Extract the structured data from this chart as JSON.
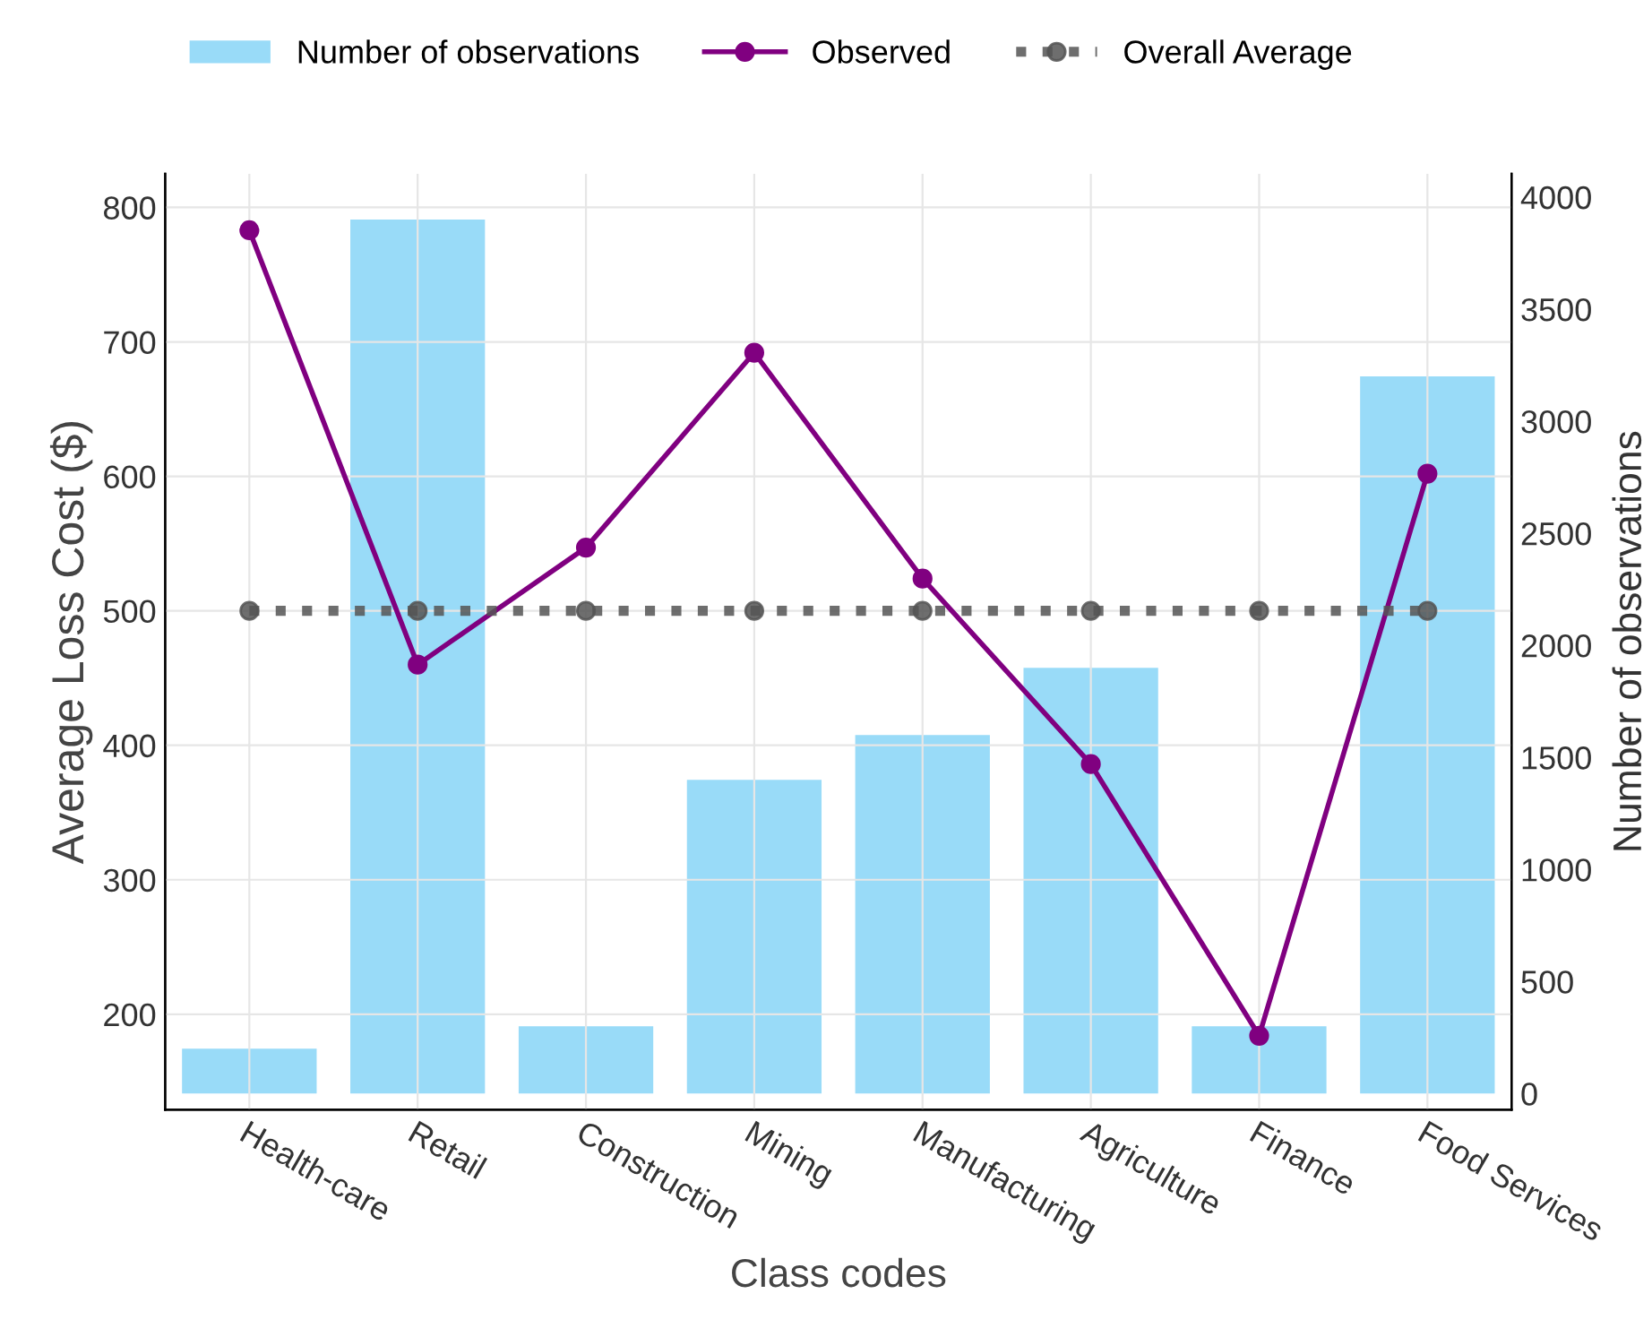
{
  "chart_data": {
    "type": "line",
    "xlabel": "Class codes",
    "ylabel": "Average Loss Cost ($)",
    "y2label": "Number of observations",
    "categories": [
      "Health-care",
      "Retail",
      "Construction",
      "Mining",
      "Manufacturing",
      "Agriculture",
      "Finance",
      "Food Services"
    ],
    "series": [
      {
        "name": "Number of observations",
        "type": "bar",
        "axis": "y2",
        "color": "#99dbf8",
        "values": [
          200,
          3900,
          300,
          1400,
          1600,
          1900,
          300,
          3200
        ]
      },
      {
        "name": "Observed",
        "color": "#800080",
        "marker": "circle",
        "line_style": "solid",
        "values": [
          783,
          460,
          547,
          692,
          524,
          386,
          184,
          602
        ]
      },
      {
        "name": "Overall Average",
        "color": "#555555",
        "marker": "circle",
        "line_style": "dotted",
        "values": [
          500,
          500,
          500,
          500,
          500,
          500,
          500,
          500
        ]
      }
    ],
    "ylim": [
      129,
      825
    ],
    "yticks": [
      200,
      300,
      400,
      500,
      600,
      700,
      800
    ],
    "y2lim": [
      -72,
      4104
    ],
    "y2ticks": [
      0,
      500,
      1000,
      1500,
      2000,
      2500,
      3000,
      3500,
      4000
    ],
    "grid": true,
    "legend": "top"
  }
}
